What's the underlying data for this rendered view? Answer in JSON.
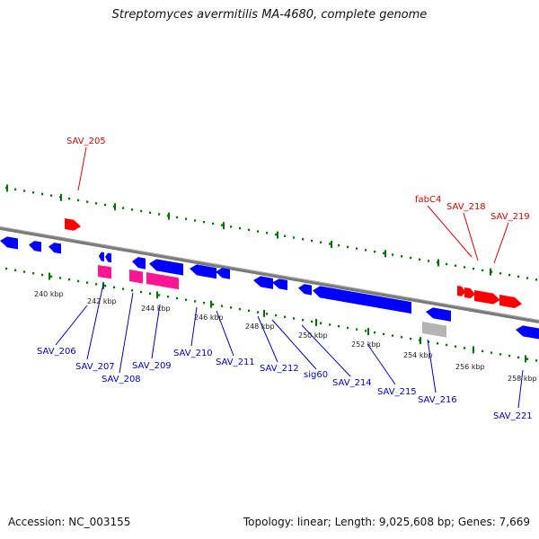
{
  "title": "Streptomyces avermitilis MA-4680, complete genome",
  "footer": {
    "accession": "Accession: NC_003155",
    "topology": "Topology: linear; Length: 9,025,608 bp; Genes: 7,669"
  },
  "kbp_labels": [
    "240 kbp",
    "242 kbp",
    "244 kbp",
    "246 kbp",
    "248 kbp",
    "250 kbp",
    "252 kbp",
    "254 kbp",
    "256 kbp",
    "258 kbp"
  ],
  "gene_labels_forward": [
    "SAV_205",
    "fabC4",
    "SAV_218",
    "SAV_219"
  ],
  "gene_labels_reverse": [
    "SAV_206",
    "SAV_207",
    "SAV_208",
    "SAV_209",
    "SAV_210",
    "SAV_211",
    "SAV_212",
    "sig60",
    "SAV_214",
    "SAV_215",
    "SAV_216",
    "SAV_221"
  ],
  "colors": {
    "forward": "#ff0000",
    "reverse": "#0000ff",
    "rna": "#ff1493",
    "other": "#b4b4b4",
    "ruler": "#007700",
    "backbone": "#808080"
  }
}
